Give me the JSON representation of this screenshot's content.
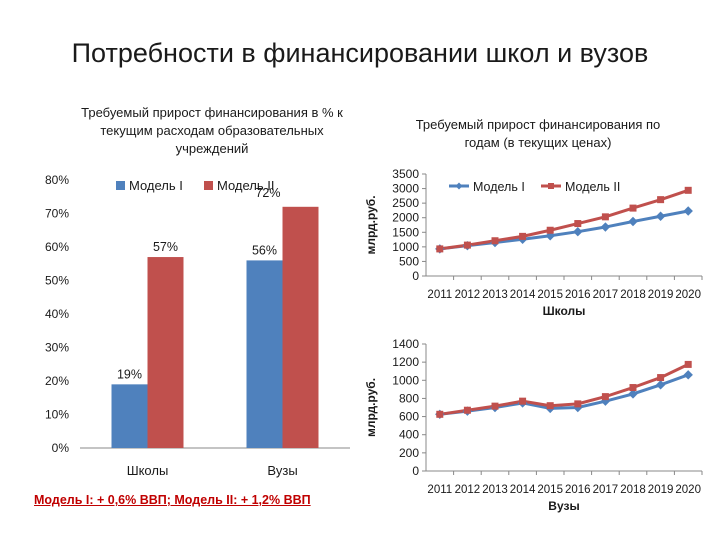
{
  "slide": {
    "title": "Потребности в финансировании школ и вузов",
    "footnote": "Модель I: + 0,6% ВВП; Модель II: + 1,2% ВВП"
  },
  "colors": {
    "model1": "#4f81bd",
    "model2": "#c0504d"
  },
  "chart_data": [
    {
      "type": "bar",
      "title": "Требуемый прирост финансирования в % к текущим расходам образовательных учреждений",
      "title_lines": [
        "Требуемый прирост финансирования в % к",
        "текущим расходам образовательных",
        "учреждений"
      ],
      "categories": [
        "Школы",
        "Вузы"
      ],
      "series": [
        {
          "name": "Модель I",
          "values": [
            19,
            56
          ]
        },
        {
          "name": "Модель II",
          "values": [
            57,
            72
          ]
        }
      ],
      "data_labels": [
        [
          "19%",
          "56%"
        ],
        [
          "57%",
          "72%"
        ]
      ],
      "ylim": [
        0,
        80
      ],
      "yticks": [
        "0%",
        "10%",
        "20%",
        "30%",
        "40%",
        "50%",
        "60%",
        "70%",
        "80%"
      ],
      "legend": "top",
      "grid": false
    },
    {
      "type": "line",
      "title": "Требуемый прирост финансирования по годам (в текущих ценах)",
      "title_lines": [
        "Требуемый прирост финансирования по",
        "годам (в текущих ценах)"
      ],
      "x": [
        "2011",
        "2012",
        "2013",
        "2014",
        "2015",
        "2016",
        "2017",
        "2018",
        "2019",
        "2020"
      ],
      "series": [
        {
          "name": "Модель I",
          "values": [
            930,
            1040,
            1150,
            1260,
            1380,
            1520,
            1680,
            1870,
            2050,
            2230
          ]
        },
        {
          "name": "Модель II",
          "values": [
            930,
            1060,
            1210,
            1360,
            1570,
            1800,
            2030,
            2330,
            2620,
            2940
          ]
        }
      ],
      "xlabel": "Школы",
      "ylabel": "млрд.руб.",
      "ylim": [
        0,
        3500
      ],
      "yticks": [
        "0",
        "500",
        "1000",
        "1500",
        "2000",
        "2500",
        "3000",
        "3500"
      ],
      "legend": "top",
      "grid": false
    },
    {
      "type": "line",
      "title": "",
      "x": [
        "2011",
        "2012",
        "2013",
        "2014",
        "2015",
        "2016",
        "2017",
        "2018",
        "2019",
        "2020"
      ],
      "series": [
        {
          "name": "Модель I",
          "values": [
            625,
            660,
            700,
            750,
            690,
            700,
            770,
            850,
            950,
            1060
          ]
        },
        {
          "name": "Модель II",
          "values": [
            625,
            670,
            715,
            770,
            720,
            740,
            820,
            920,
            1030,
            1175
          ]
        }
      ],
      "xlabel": "Вузы",
      "ylabel": "млрд.руб.",
      "ylim": [
        0,
        1400
      ],
      "yticks": [
        "0",
        "200",
        "400",
        "600",
        "800",
        "1000",
        "1200",
        "1400"
      ],
      "legend": "none",
      "grid": false
    }
  ]
}
